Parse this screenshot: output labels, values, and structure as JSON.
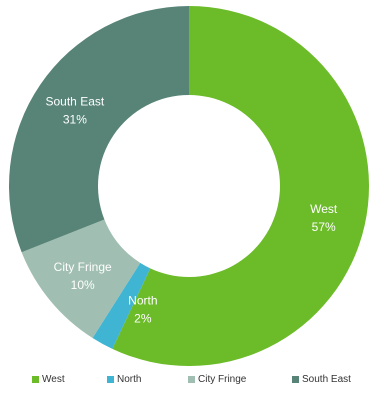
{
  "chart_data": {
    "type": "pie",
    "donut": true,
    "categories": [
      "West",
      "North",
      "City Fringe",
      "South East"
    ],
    "values": [
      57,
      2,
      10,
      31
    ],
    "value_labels": [
      "57%",
      "2%",
      "10%",
      "31%"
    ],
    "colors": [
      "#6cbb29",
      "#3fb5d3",
      "#a0beb1",
      "#578477"
    ],
    "legend": {
      "position": "bottom",
      "entries": [
        "West",
        "North",
        "City Fringe",
        "South East"
      ]
    }
  }
}
